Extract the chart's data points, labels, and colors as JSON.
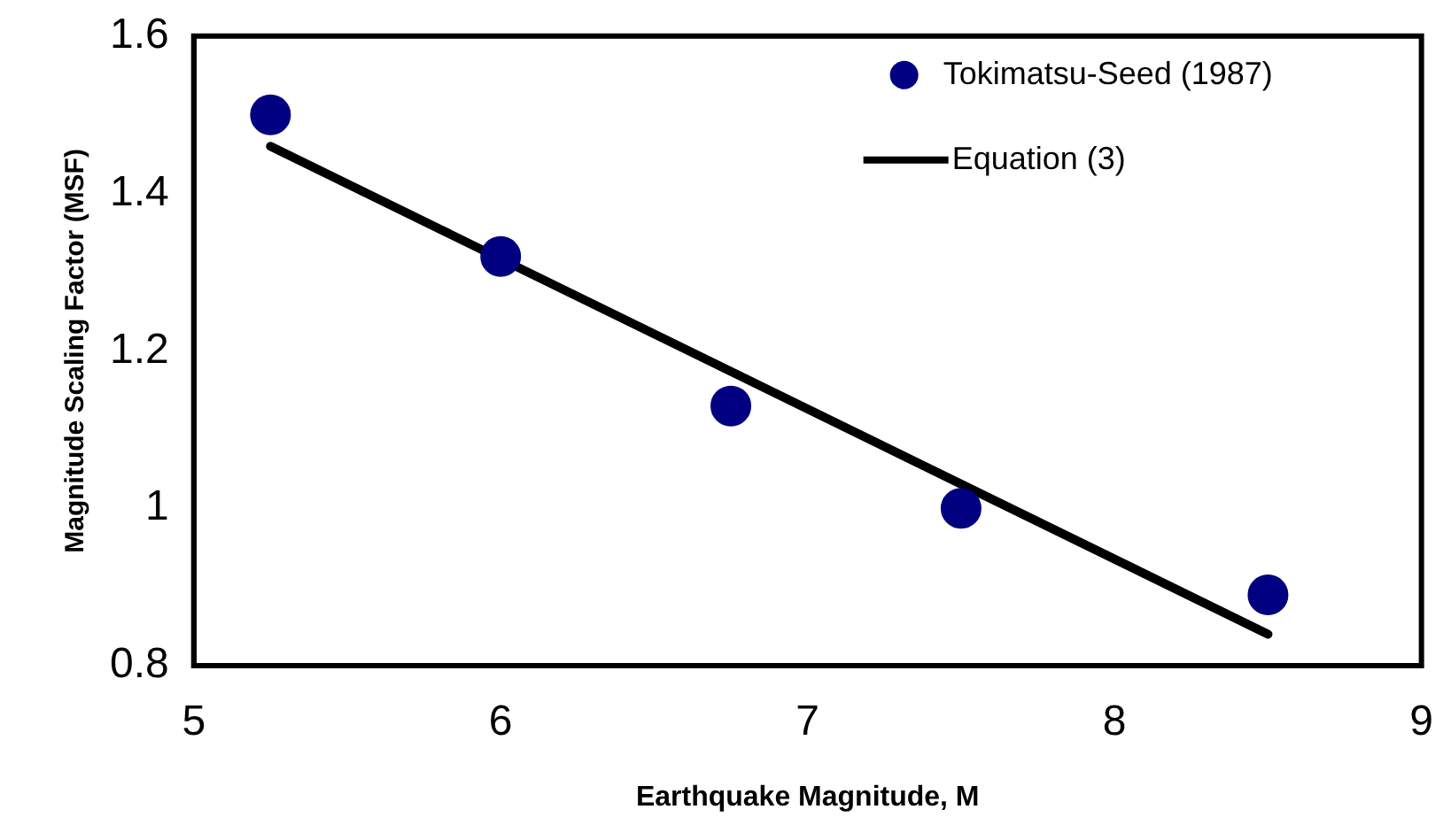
{
  "chart_data": {
    "type": "scatter",
    "xlabel": "Earthquake Magnitude, M",
    "ylabel": "Magnitude Scaling Factor (MSF)",
    "xlim": [
      5,
      9
    ],
    "xticks": [
      5,
      6,
      7,
      8,
      9
    ],
    "ylim": [
      0.8,
      1.6
    ],
    "yticks": [
      0.8,
      1,
      1.2,
      1.4,
      1.6
    ],
    "grid": false,
    "legend": "top right",
    "series": [
      {
        "name": "Tokimatsu-Seed (1987)",
        "type": "scatter",
        "marker": "circle",
        "color": "#000080",
        "x": [
          5.25,
          6,
          6.75,
          7.5,
          8.5
        ],
        "values": [
          1.5,
          1.32,
          1.13,
          1.0,
          0.89
        ]
      },
      {
        "name": "Equation (3)",
        "type": "line",
        "color": "#000000",
        "x": [
          5.25,
          8.5
        ],
        "values": [
          1.46,
          0.84
        ],
        "line_style": "solid",
        "marker": "none"
      }
    ]
  }
}
